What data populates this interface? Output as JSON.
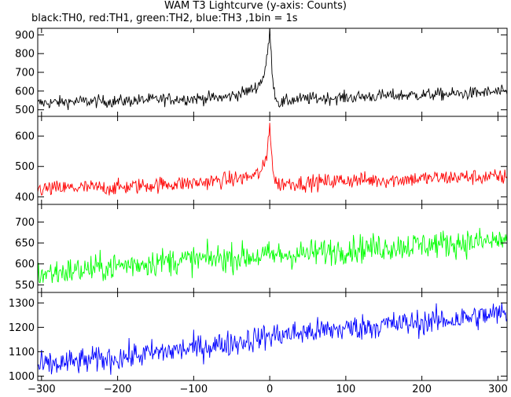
{
  "chart_data": {
    "type": "line",
    "title": "WAM T3 Lightcurve (y-axis: Counts)",
    "subtitle": "black:TH0, red:TH1, green:TH2, blue:TH3 ,1bin = 1s",
    "xlim": [
      -305,
      312
    ],
    "x_ticks": [
      -300,
      -200,
      -100,
      0,
      100,
      200,
      300
    ],
    "grid": false,
    "panels": [
      {
        "name": "TH0",
        "color": "#000000",
        "ylim": [
          465,
          935
        ],
        "y_ticks": [
          500,
          600,
          700,
          800,
          900
        ],
        "x": [
          -305,
          -250,
          -200,
          -150,
          -100,
          -60,
          -40,
          -25,
          -15,
          -8,
          -4,
          0,
          3,
          6,
          10,
          15,
          25,
          50,
          100,
          150,
          200,
          250,
          300,
          312
        ],
        "y": [
          535,
          545,
          545,
          555,
          560,
          565,
          585,
          605,
          630,
          680,
          760,
          920,
          720,
          600,
          545,
          535,
          550,
          560,
          565,
          575,
          580,
          585,
          595,
          590
        ],
        "noise": 28
      },
      {
        "name": "TH1",
        "color": "#ff0000",
        "ylim": [
          375,
          665
        ],
        "y_ticks": [
          400,
          500,
          600
        ],
        "x": [
          -305,
          -250,
          -200,
          -150,
          -100,
          -60,
          -40,
          -20,
          -10,
          -4,
          0,
          3,
          6,
          10,
          20,
          50,
          100,
          150,
          200,
          250,
          300,
          312
        ],
        "y": [
          425,
          430,
          430,
          440,
          445,
          455,
          460,
          470,
          485,
          530,
          650,
          520,
          460,
          440,
          445,
          445,
          455,
          455,
          460,
          465,
          465,
          465
        ],
        "noise": 22
      },
      {
        "name": "TH2",
        "color": "#00ff00",
        "ylim": [
          532,
          742
        ],
        "y_ticks": [
          550,
          600,
          650,
          700
        ],
        "x": [
          -305,
          -280,
          -250,
          -200,
          -150,
          -100,
          -50,
          0,
          50,
          100,
          150,
          200,
          250,
          300,
          312
        ],
        "y": [
          575,
          580,
          585,
          595,
          605,
          610,
          615,
          620,
          625,
          635,
          640,
          645,
          650,
          655,
          660
        ],
        "noise": 28
      },
      {
        "name": "TH3",
        "color": "#0000ff",
        "ylim": [
          982,
          1343
        ],
        "y_ticks": [
          1000,
          1100,
          1200,
          1300
        ],
        "x": [
          -305,
          -250,
          -200,
          -150,
          -100,
          -50,
          0,
          50,
          100,
          150,
          200,
          250,
          300,
          312
        ],
        "y": [
          1040,
          1060,
          1075,
          1095,
          1115,
          1135,
          1165,
          1180,
          1195,
          1210,
          1220,
          1235,
          1255,
          1260
        ],
        "noise": 45
      }
    ]
  }
}
